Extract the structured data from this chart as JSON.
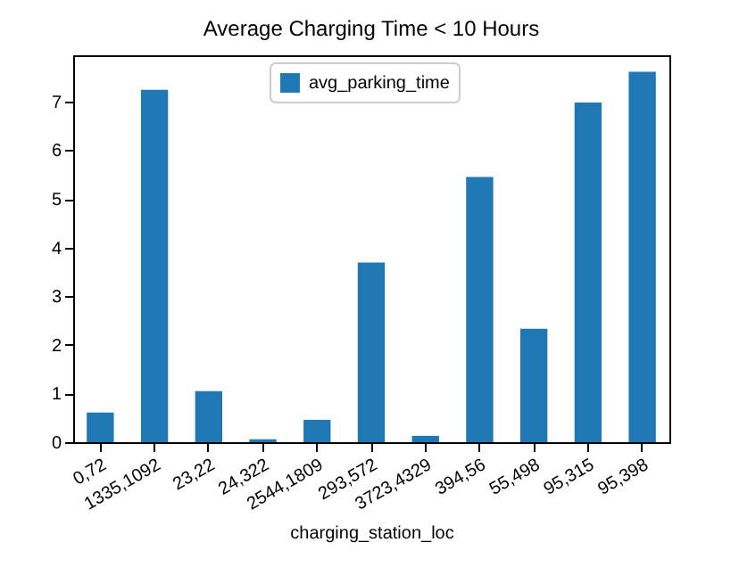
{
  "chart_data": {
    "type": "bar",
    "title": "Average Charging Time < 10 Hours",
    "xlabel": "charging_station_loc",
    "categories": [
      "0,72",
      "1335,1092",
      "23,22",
      "24,322",
      "2544,1809",
      "293,572",
      "3723,4329",
      "394,56",
      "55,498",
      "95,315",
      "95,398"
    ],
    "series": [
      {
        "name": "avg_parking_time",
        "color": "#1f77b4",
        "values": [
          0.61,
          7.24,
          1.05,
          0.06,
          0.46,
          3.69,
          0.13,
          5.45,
          2.33,
          6.98,
          7.61
        ]
      }
    ],
    "ylim": [
      0,
      7.95
    ],
    "yticks": [
      0,
      1,
      2,
      3,
      4,
      5,
      6,
      7
    ],
    "grid": false,
    "legend": "top"
  }
}
